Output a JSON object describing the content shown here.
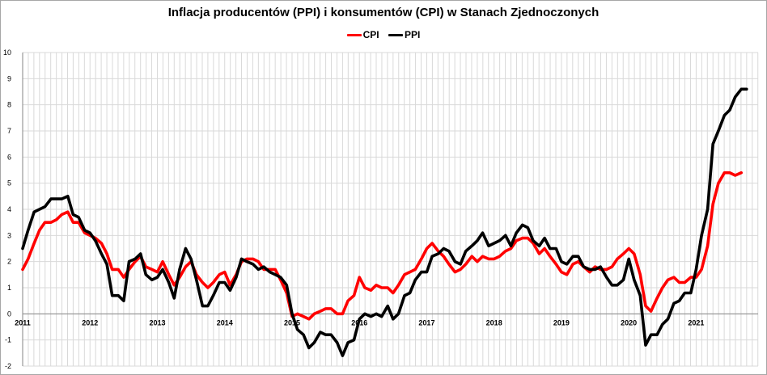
{
  "chart_data": {
    "type": "line",
    "title": "Inflacja producentów (PPI) i konsumentów (CPI) w Stanach Zjednoczonych",
    "xlabel": "",
    "ylabel": "",
    "ylim": [
      -2,
      10
    ],
    "xlim": [
      2011,
      2021.92
    ],
    "y_ticks": [
      "-2",
      "-1",
      "0",
      "1",
      "2",
      "3",
      "4",
      "5",
      "6",
      "7",
      "8",
      "9",
      "10"
    ],
    "x_ticks": [
      "2011",
      "2012",
      "2013",
      "2014",
      "2015",
      "2016",
      "2017",
      "2018",
      "2019",
      "2020",
      "2021"
    ],
    "grid": "vertical-monthly-and-horizontal",
    "legend_position": "top",
    "series": [
      {
        "name": "CPI",
        "color": "#ff0000",
        "points": [
          [
            2011.0,
            1.7
          ],
          [
            2011.08,
            2.1
          ],
          [
            2011.17,
            2.7
          ],
          [
            2011.25,
            3.2
          ],
          [
            2011.33,
            3.5
          ],
          [
            2011.42,
            3.5
          ],
          [
            2011.5,
            3.6
          ],
          [
            2011.58,
            3.8
          ],
          [
            2011.67,
            3.9
          ],
          [
            2011.75,
            3.5
          ],
          [
            2011.83,
            3.5
          ],
          [
            2011.92,
            3.1
          ],
          [
            2012.0,
            3.0
          ],
          [
            2012.08,
            2.9
          ],
          [
            2012.17,
            2.7
          ],
          [
            2012.25,
            2.3
          ],
          [
            2012.33,
            1.7
          ],
          [
            2012.42,
            1.7
          ],
          [
            2012.5,
            1.4
          ],
          [
            2012.58,
            1.7
          ],
          [
            2012.67,
            2.0
          ],
          [
            2012.75,
            2.2
          ],
          [
            2012.83,
            1.8
          ],
          [
            2012.92,
            1.7
          ],
          [
            2013.0,
            1.6
          ],
          [
            2013.08,
            2.0
          ],
          [
            2013.17,
            1.5
          ],
          [
            2013.25,
            1.1
          ],
          [
            2013.33,
            1.4
          ],
          [
            2013.42,
            1.8
          ],
          [
            2013.5,
            2.0
          ],
          [
            2013.58,
            1.5
          ],
          [
            2013.67,
            1.2
          ],
          [
            2013.75,
            1.0
          ],
          [
            2013.83,
            1.2
          ],
          [
            2013.92,
            1.5
          ],
          [
            2014.0,
            1.6
          ],
          [
            2014.08,
            1.1
          ],
          [
            2014.17,
            1.5
          ],
          [
            2014.25,
            2.0
          ],
          [
            2014.33,
            2.1
          ],
          [
            2014.42,
            2.1
          ],
          [
            2014.5,
            2.0
          ],
          [
            2014.58,
            1.7
          ],
          [
            2014.67,
            1.7
          ],
          [
            2014.75,
            1.7
          ],
          [
            2014.83,
            1.3
          ],
          [
            2014.92,
            0.8
          ],
          [
            2015.0,
            -0.1
          ],
          [
            2015.08,
            0.0
          ],
          [
            2015.17,
            -0.1
          ],
          [
            2015.25,
            -0.2
          ],
          [
            2015.33,
            0.0
          ],
          [
            2015.42,
            0.1
          ],
          [
            2015.5,
            0.2
          ],
          [
            2015.58,
            0.2
          ],
          [
            2015.67,
            0.0
          ],
          [
            2015.75,
            0.0
          ],
          [
            2015.83,
            0.5
          ],
          [
            2015.92,
            0.7
          ],
          [
            2016.0,
            1.4
          ],
          [
            2016.08,
            1.0
          ],
          [
            2016.17,
            0.9
          ],
          [
            2016.25,
            1.1
          ],
          [
            2016.33,
            1.0
          ],
          [
            2016.42,
            1.0
          ],
          [
            2016.5,
            0.8
          ],
          [
            2016.58,
            1.1
          ],
          [
            2016.67,
            1.5
          ],
          [
            2016.75,
            1.6
          ],
          [
            2016.83,
            1.7
          ],
          [
            2016.92,
            2.1
          ],
          [
            2017.0,
            2.5
          ],
          [
            2017.08,
            2.7
          ],
          [
            2017.17,
            2.4
          ],
          [
            2017.25,
            2.2
          ],
          [
            2017.33,
            1.9
          ],
          [
            2017.42,
            1.6
          ],
          [
            2017.5,
            1.7
          ],
          [
            2017.58,
            1.9
          ],
          [
            2017.67,
            2.2
          ],
          [
            2017.75,
            2.0
          ],
          [
            2017.83,
            2.2
          ],
          [
            2017.92,
            2.1
          ],
          [
            2018.0,
            2.1
          ],
          [
            2018.08,
            2.2
          ],
          [
            2018.17,
            2.4
          ],
          [
            2018.25,
            2.5
          ],
          [
            2018.33,
            2.8
          ],
          [
            2018.42,
            2.9
          ],
          [
            2018.5,
            2.9
          ],
          [
            2018.58,
            2.7
          ],
          [
            2018.67,
            2.3
          ],
          [
            2018.75,
            2.5
          ],
          [
            2018.83,
            2.2
          ],
          [
            2018.92,
            1.9
          ],
          [
            2019.0,
            1.6
          ],
          [
            2019.08,
            1.5
          ],
          [
            2019.17,
            1.9
          ],
          [
            2019.25,
            2.0
          ],
          [
            2019.33,
            1.8
          ],
          [
            2019.42,
            1.6
          ],
          [
            2019.5,
            1.8
          ],
          [
            2019.58,
            1.7
          ],
          [
            2019.67,
            1.7
          ],
          [
            2019.75,
            1.8
          ],
          [
            2019.83,
            2.1
          ],
          [
            2019.92,
            2.3
          ],
          [
            2020.0,
            2.5
          ],
          [
            2020.08,
            2.3
          ],
          [
            2020.17,
            1.5
          ],
          [
            2020.25,
            0.3
          ],
          [
            2020.33,
            0.1
          ],
          [
            2020.42,
            0.6
          ],
          [
            2020.5,
            1.0
          ],
          [
            2020.58,
            1.3
          ],
          [
            2020.67,
            1.4
          ],
          [
            2020.75,
            1.2
          ],
          [
            2020.83,
            1.2
          ],
          [
            2020.92,
            1.4
          ],
          [
            2021.0,
            1.4
          ],
          [
            2021.08,
            1.7
          ],
          [
            2021.17,
            2.6
          ],
          [
            2021.25,
            4.2
          ],
          [
            2021.33,
            5.0
          ],
          [
            2021.42,
            5.4
          ],
          [
            2021.5,
            5.4
          ],
          [
            2021.58,
            5.3
          ],
          [
            2021.67,
            5.4
          ]
        ]
      },
      {
        "name": "PPI",
        "color": "#000000",
        "points": [
          [
            2011.0,
            2.5
          ],
          [
            2011.08,
            3.2
          ],
          [
            2011.17,
            3.9
          ],
          [
            2011.25,
            4.0
          ],
          [
            2011.33,
            4.1
          ],
          [
            2011.42,
            4.4
          ],
          [
            2011.5,
            4.4
          ],
          [
            2011.58,
            4.4
          ],
          [
            2011.67,
            4.5
          ],
          [
            2011.75,
            3.8
          ],
          [
            2011.83,
            3.7
          ],
          [
            2011.92,
            3.2
          ],
          [
            2012.0,
            3.1
          ],
          [
            2012.08,
            2.8
          ],
          [
            2012.17,
            2.3
          ],
          [
            2012.25,
            1.9
          ],
          [
            2012.33,
            0.7
          ],
          [
            2012.42,
            0.7
          ],
          [
            2012.5,
            0.5
          ],
          [
            2012.58,
            2.0
          ],
          [
            2012.67,
            2.1
          ],
          [
            2012.75,
            2.3
          ],
          [
            2012.83,
            1.5
          ],
          [
            2012.92,
            1.3
          ],
          [
            2013.0,
            1.4
          ],
          [
            2013.08,
            1.7
          ],
          [
            2013.17,
            1.2
          ],
          [
            2013.25,
            0.6
          ],
          [
            2013.33,
            1.7
          ],
          [
            2013.42,
            2.5
          ],
          [
            2013.5,
            2.1
          ],
          [
            2013.58,
            1.3
          ],
          [
            2013.67,
            0.3
          ],
          [
            2013.75,
            0.3
          ],
          [
            2013.83,
            0.7
          ],
          [
            2013.92,
            1.2
          ],
          [
            2014.0,
            1.2
          ],
          [
            2014.08,
            0.9
          ],
          [
            2014.17,
            1.4
          ],
          [
            2014.25,
            2.1
          ],
          [
            2014.33,
            2.0
          ],
          [
            2014.42,
            1.9
          ],
          [
            2014.5,
            1.7
          ],
          [
            2014.58,
            1.8
          ],
          [
            2014.67,
            1.6
          ],
          [
            2014.75,
            1.5
          ],
          [
            2014.83,
            1.4
          ],
          [
            2014.92,
            1.1
          ],
          [
            2015.0,
            0.0
          ],
          [
            2015.08,
            -0.6
          ],
          [
            2015.17,
            -0.8
          ],
          [
            2015.25,
            -1.3
          ],
          [
            2015.33,
            -1.1
          ],
          [
            2015.42,
            -0.7
          ],
          [
            2015.5,
            -0.8
          ],
          [
            2015.58,
            -0.8
          ],
          [
            2015.67,
            -1.1
          ],
          [
            2015.75,
            -1.6
          ],
          [
            2015.83,
            -1.1
          ],
          [
            2015.92,
            -1.0
          ],
          [
            2016.0,
            -0.2
          ],
          [
            2016.08,
            0.0
          ],
          [
            2016.17,
            -0.1
          ],
          [
            2016.25,
            0.0
          ],
          [
            2016.33,
            -0.1
          ],
          [
            2016.42,
            0.3
          ],
          [
            2016.5,
            -0.2
          ],
          [
            2016.58,
            0.0
          ],
          [
            2016.67,
            0.7
          ],
          [
            2016.75,
            0.8
          ],
          [
            2016.83,
            1.3
          ],
          [
            2016.92,
            1.6
          ],
          [
            2017.0,
            1.6
          ],
          [
            2017.08,
            2.2
          ],
          [
            2017.17,
            2.3
          ],
          [
            2017.25,
            2.5
          ],
          [
            2017.33,
            2.4
          ],
          [
            2017.42,
            2.0
          ],
          [
            2017.5,
            1.9
          ],
          [
            2017.58,
            2.4
          ],
          [
            2017.67,
            2.6
          ],
          [
            2017.75,
            2.8
          ],
          [
            2017.83,
            3.1
          ],
          [
            2017.92,
            2.6
          ],
          [
            2018.0,
            2.7
          ],
          [
            2018.08,
            2.8
          ],
          [
            2018.17,
            3.0
          ],
          [
            2018.25,
            2.6
          ],
          [
            2018.33,
            3.1
          ],
          [
            2018.42,
            3.4
          ],
          [
            2018.5,
            3.3
          ],
          [
            2018.58,
            2.8
          ],
          [
            2018.67,
            2.6
          ],
          [
            2018.75,
            2.9
          ],
          [
            2018.83,
            2.5
          ],
          [
            2018.92,
            2.5
          ],
          [
            2019.0,
            2.0
          ],
          [
            2019.08,
            1.9
          ],
          [
            2019.17,
            2.2
          ],
          [
            2019.25,
            2.2
          ],
          [
            2019.33,
            1.8
          ],
          [
            2019.42,
            1.7
          ],
          [
            2019.5,
            1.7
          ],
          [
            2019.58,
            1.8
          ],
          [
            2019.67,
            1.4
          ],
          [
            2019.75,
            1.1
          ],
          [
            2019.83,
            1.1
          ],
          [
            2019.92,
            1.3
          ],
          [
            2020.0,
            2.1
          ],
          [
            2020.08,
            1.3
          ],
          [
            2020.17,
            0.7
          ],
          [
            2020.25,
            -1.2
          ],
          [
            2020.33,
            -0.8
          ],
          [
            2020.42,
            -0.8
          ],
          [
            2020.5,
            -0.4
          ],
          [
            2020.58,
            -0.2
          ],
          [
            2020.67,
            0.4
          ],
          [
            2020.75,
            0.5
          ],
          [
            2020.83,
            0.8
          ],
          [
            2020.92,
            0.8
          ],
          [
            2021.0,
            1.7
          ],
          [
            2021.08,
            3.0
          ],
          [
            2021.17,
            4.0
          ],
          [
            2021.25,
            6.5
          ],
          [
            2021.33,
            7.0
          ],
          [
            2021.42,
            7.6
          ],
          [
            2021.5,
            7.8
          ],
          [
            2021.58,
            8.3
          ],
          [
            2021.67,
            8.6
          ],
          [
            2021.75,
            8.6
          ]
        ]
      }
    ]
  }
}
